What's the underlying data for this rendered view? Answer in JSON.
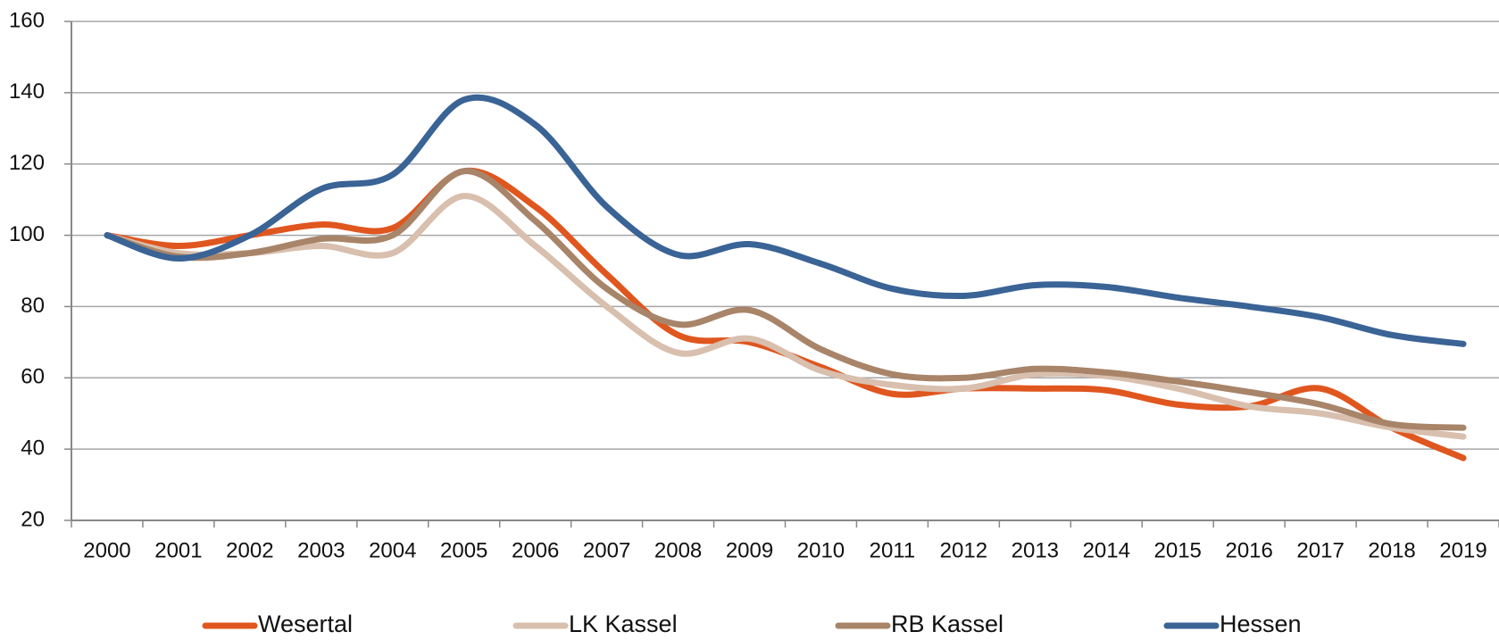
{
  "chart_data": {
    "type": "line",
    "categories": [
      "2000",
      "2001",
      "2002",
      "2003",
      "2004",
      "2005",
      "2006",
      "2007",
      "2008",
      "2009",
      "2010",
      "2011",
      "2012",
      "2013",
      "2014",
      "2015",
      "2016",
      "2017",
      "2018",
      "2019"
    ],
    "series": [
      {
        "name": "Wesertal",
        "color": "#e0561f",
        "values": [
          100,
          97,
          100,
          103,
          102,
          118,
          108,
          89,
          72,
          70,
          63,
          55.5,
          57,
          57,
          56.5,
          52.5,
          52,
          57,
          46,
          37.5
        ]
      },
      {
        "name": "LK Kassel",
        "color": "#d8bfae",
        "values": [
          100,
          95,
          95,
          97,
          95,
          111,
          97,
          80,
          67,
          71,
          62,
          58,
          57,
          61,
          60.5,
          57,
          52,
          50,
          46,
          43.5
        ]
      },
      {
        "name": "RB Kassel",
        "color": "#a88469",
        "values": [
          100,
          94,
          95,
          99,
          100,
          118,
          104,
          85,
          75,
          79,
          68,
          61,
          60,
          62.5,
          61.5,
          59,
          56,
          52.5,
          47,
          46
        ]
      },
      {
        "name": "Hessen",
        "color": "#3a6396",
        "values": [
          100,
          93.5,
          100,
          113,
          117,
          138,
          131,
          108,
          94.5,
          97.5,
          92,
          85,
          83,
          86,
          85.5,
          82.5,
          80,
          77,
          72,
          69.5
        ]
      }
    ],
    "ylim": [
      20,
      160
    ],
    "yticks": [
      20,
      40,
      60,
      80,
      100,
      120,
      140,
      160
    ],
    "grid": true,
    "legend": "bottom"
  }
}
